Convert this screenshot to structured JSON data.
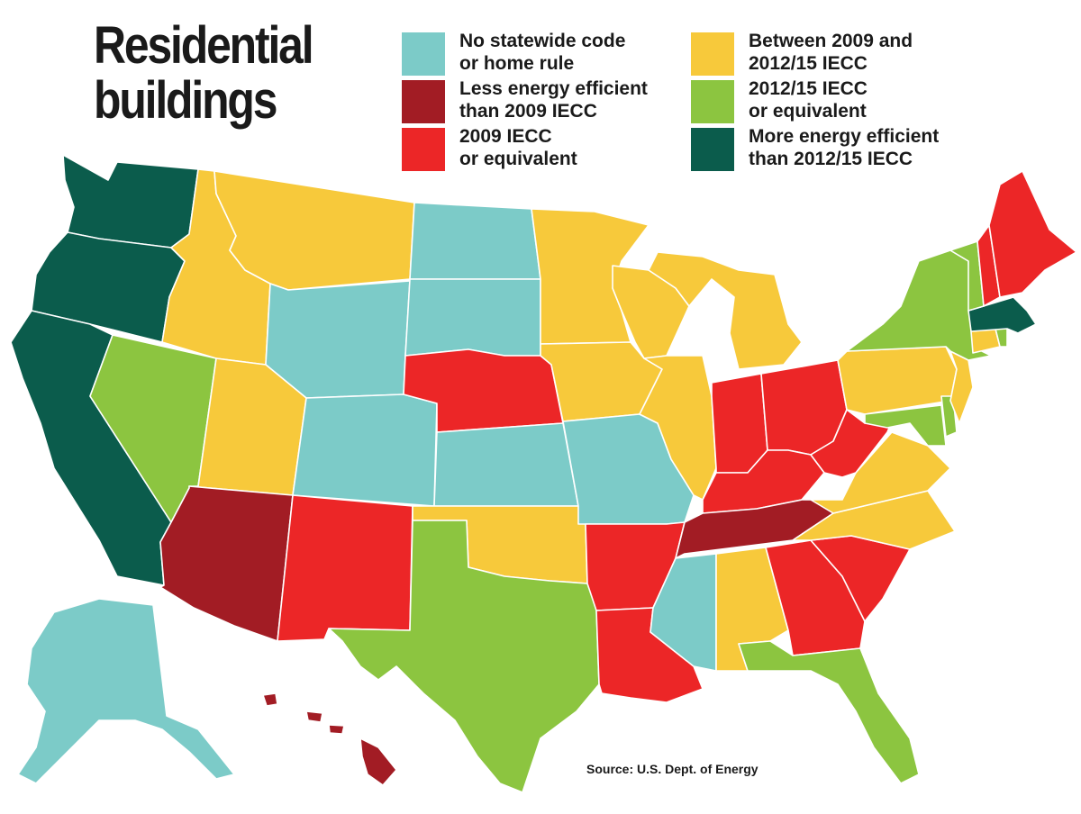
{
  "title": "Residential\nbuildings",
  "source": "Source: U.S. Dept. of Energy",
  "categories": {
    "none": {
      "label": "No statewide code\nor home rule",
      "color": "#7ccbc8"
    },
    "less": {
      "label": "Less energy efficient\nthan 2009 IECC",
      "color": "#a21c24"
    },
    "iecc9": {
      "label": "2009 IECC\nor equivalent",
      "color": "#ec2627"
    },
    "betw": {
      "label": "Between 2009 and\n2012/15 IECC",
      "color": "#f7c93b"
    },
    "iecc12": {
      "label": "2012/15 IECC\nor equivalent",
      "color": "#8cc540"
    },
    "more": {
      "label": "More energy efficient\nthan 2012/15 IECC",
      "color": "#0b5c4c"
    }
  },
  "legend_order": [
    "none",
    "less",
    "iecc9",
    "betw",
    "iecc12",
    "more"
  ],
  "states": {
    "WA": "more",
    "OR": "more",
    "CA": "more",
    "MA": "more",
    "AZ": "less",
    "TN": "less",
    "HI": "less",
    "NM": "iecc9",
    "NE": "iecc9",
    "IN": "iecc9",
    "OH": "iecc9",
    "KY": "iecc9",
    "WV": "iecc9",
    "AR": "iecc9",
    "LA": "iecc9",
    "GA": "iecc9",
    "SC": "iecc9",
    "ME": "iecc9",
    "NH": "iecc9",
    "ID": "betw",
    "MT": "betw",
    "UT": "betw",
    "MN": "betw",
    "WI": "betw",
    "IA": "betw",
    "IL": "betw",
    "MI": "betw",
    "OK": "betw",
    "AL": "betw",
    "NC": "betw",
    "VA": "betw",
    "PA": "betw",
    "NJ": "betw",
    "CT": "betw",
    "NV": "iecc12",
    "TX": "iecc12",
    "FL": "iecc12",
    "NY": "iecc12",
    "VT": "iecc12",
    "MD": "iecc12",
    "DE": "iecc12",
    "RI": "iecc12",
    "ND": "none",
    "SD": "none",
    "WY": "none",
    "CO": "none",
    "KS": "none",
    "MO": "none",
    "MS": "none",
    "AK": "none"
  }
}
